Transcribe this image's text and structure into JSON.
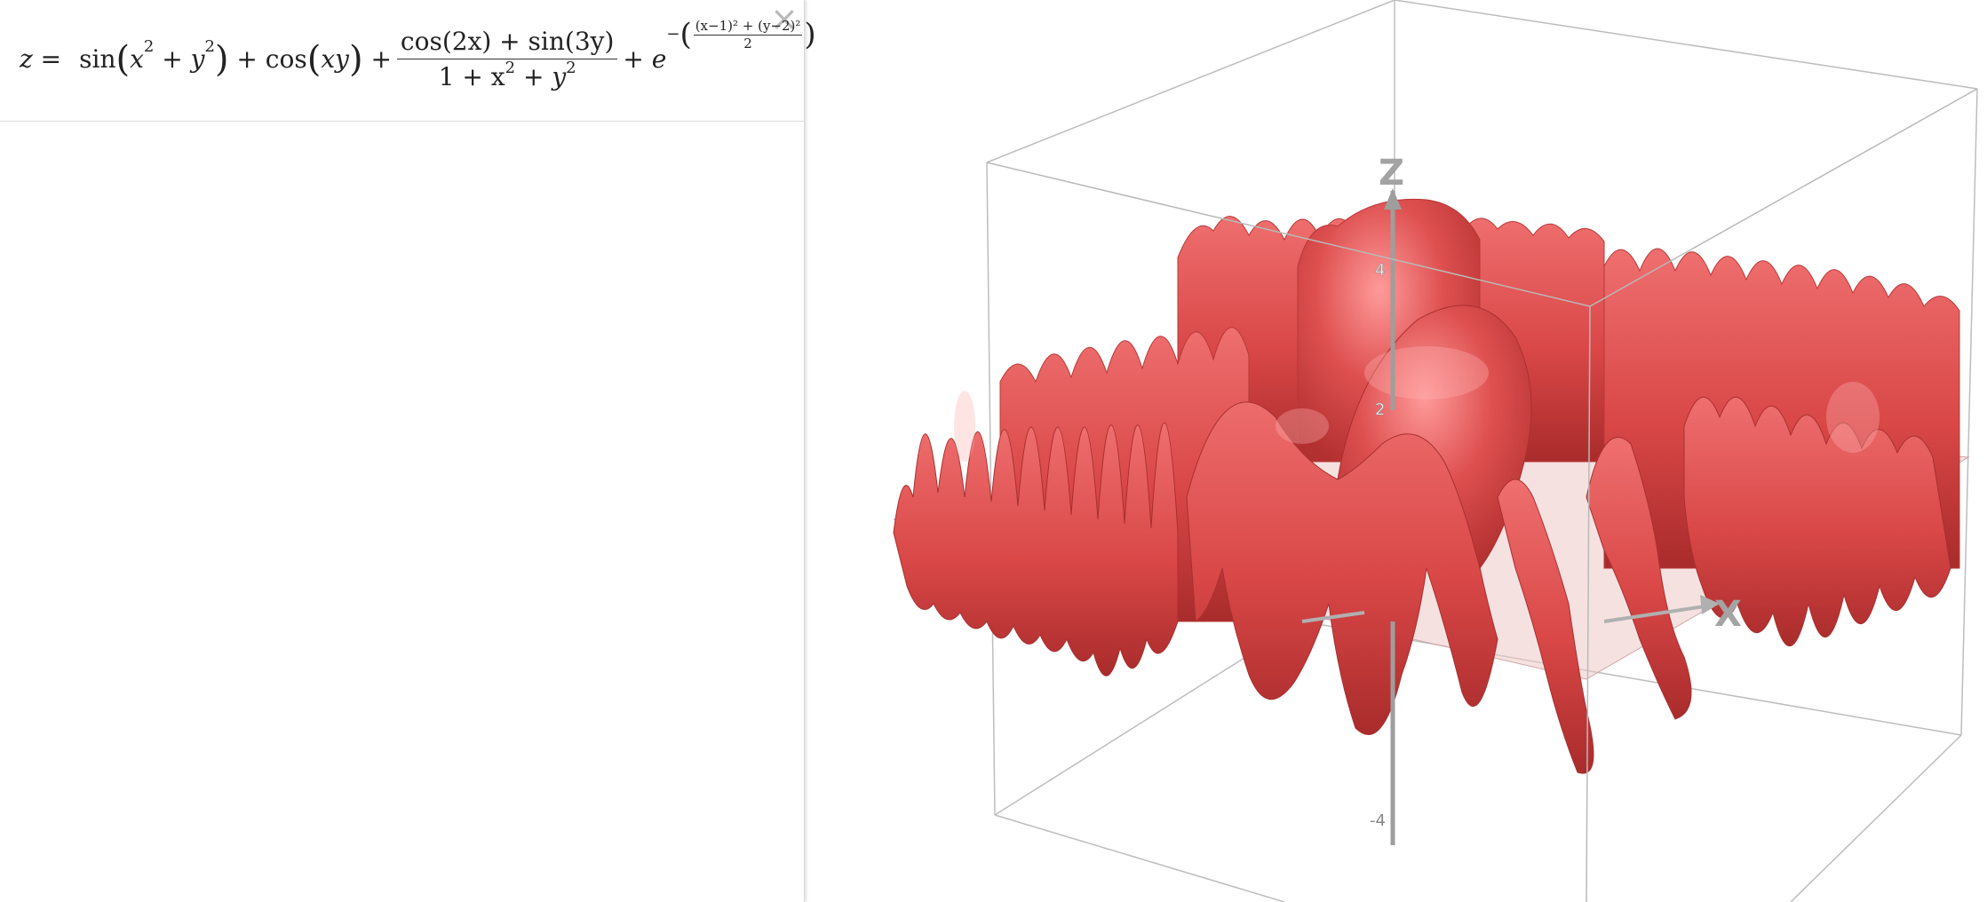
{
  "algebra": {
    "lhs": "z =",
    "close_label": "×",
    "formula": {
      "sin": "sin",
      "cos": "cos",
      "plus": "+",
      "x": "x",
      "y": "y",
      "xy": "xy",
      "two": "2",
      "one": "1",
      "e": "e",
      "numerator": "cos(2x) + sin(3y)",
      "denominator_1": "1 + x",
      "exp_numerator": "(x−1)² + (y−2)²",
      "exp_denominator": "2",
      "minus": "−"
    }
  },
  "graphics3d": {
    "surface_color": "#d94a4a",
    "axis_labels": {
      "z": "Z",
      "x": "X"
    },
    "z_ticks": [
      "4",
      "2",
      "-4"
    ]
  }
}
